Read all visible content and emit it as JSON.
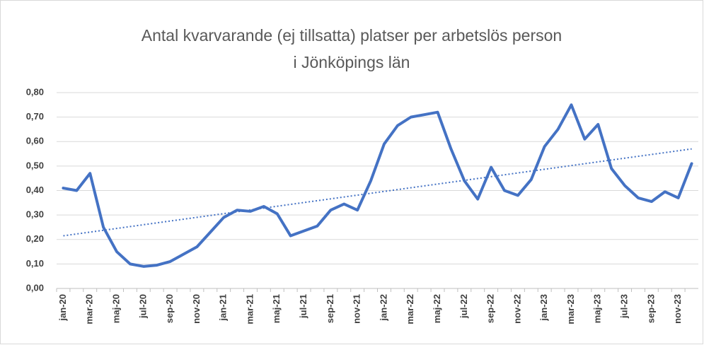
{
  "chart_data": {
    "type": "line",
    "title": [
      "Antal kvarvarande (ej tillsatta) platser per arbetslös person",
      "i Jönköpings län"
    ],
    "categories": [
      "jan-20",
      null,
      "mar-20",
      null,
      "maj-20",
      null,
      "jul-20",
      null,
      "sep-20",
      null,
      "nov-20",
      null,
      "jan-21",
      null,
      "mar-21",
      null,
      "maj-21",
      null,
      "jul-21",
      null,
      "sep-21",
      null,
      "nov-21",
      null,
      "jan-22",
      null,
      "mar-22",
      null,
      "maj-22",
      null,
      "jul-22",
      null,
      "sep-22",
      null,
      "nov-22",
      null,
      "jan-23",
      null,
      "mar-23",
      null,
      "maj-23",
      null,
      "jul-23",
      null,
      "sep-23",
      null,
      "nov-23",
      null
    ],
    "values": [
      0.41,
      0.4,
      0.47,
      0.25,
      0.15,
      0.1,
      0.09,
      0.095,
      0.11,
      0.14,
      0.17,
      0.23,
      0.29,
      0.32,
      0.315,
      0.335,
      0.305,
      0.215,
      0.235,
      0.255,
      0.32,
      0.345,
      0.32,
      0.44,
      0.59,
      0.665,
      0.7,
      0.71,
      0.72,
      0.57,
      0.44,
      0.365,
      0.495,
      0.4,
      0.38,
      0.445,
      0.58,
      0.65,
      0.75,
      0.61,
      0.67,
      0.49,
      0.42,
      0.37,
      0.355,
      0.395,
      0.37,
      0.51
    ],
    "color": "#4472c4",
    "trendline": {
      "values": [
        0.215,
        0.57
      ],
      "color": "#4472c4",
      "style": "dotted"
    },
    "ylim": [
      0,
      0.8
    ],
    "yticks": [
      {
        "value": 0,
        "label": "0,00"
      },
      {
        "value": 0.1,
        "label": "0,10"
      },
      {
        "value": 0.2,
        "label": "0,20"
      },
      {
        "value": 0.3,
        "label": "0,30"
      },
      {
        "value": 0.4,
        "label": "0,40"
      },
      {
        "value": 0.5,
        "label": "0,50"
      },
      {
        "value": 0.6,
        "label": "0,60"
      },
      {
        "value": 0.7,
        "label": "0,70"
      },
      {
        "value": 0.8,
        "label": "0,80"
      }
    ],
    "grid": true
  }
}
